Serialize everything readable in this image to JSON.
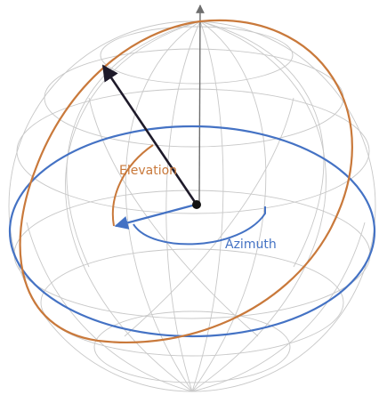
{
  "labels": {
    "elevation": "Elevation",
    "azimuth": "Azimuth"
  },
  "colors": {
    "grid": "#c8c8c8",
    "elevation": "#c9793b",
    "azimuth": "#4472c4",
    "vector": "#1e1a2a",
    "axis": "#6e6e6e",
    "origin": "#111111"
  }
}
